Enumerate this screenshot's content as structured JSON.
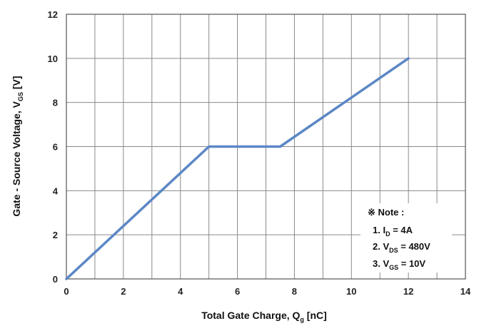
{
  "chart_data": {
    "type": "line",
    "xlabel": {
      "main": "Total Gate Charge, Q",
      "sub": "g",
      "unit": " [nC]"
    },
    "ylabel": {
      "main": "Gate - Source Voltage, V",
      "sub": "GS",
      "unit": " [V]"
    },
    "xlim": [
      0,
      14
    ],
    "ylim": [
      0,
      12
    ],
    "x_ticks": [
      0,
      2,
      4,
      6,
      8,
      10,
      12,
      14
    ],
    "y_ticks": [
      0,
      2,
      4,
      6,
      8,
      10,
      12
    ],
    "x_grid_step": 1,
    "y_grid_step": 2,
    "grid": true,
    "series": [
      {
        "x": [
          0,
          5,
          7.5,
          12
        ],
        "y": [
          0,
          6,
          6,
          10
        ]
      }
    ],
    "line_color": "#5b87c5",
    "legend": null,
    "note": {
      "title": "※ Note :",
      "lines": [
        {
          "prefix": "1. I",
          "sub": "D",
          "suffix": " = 4A"
        },
        {
          "prefix": "2. V",
          "sub": "DS",
          "suffix": " = 480V"
        },
        {
          "prefix": "3. V",
          "sub": "GS",
          "suffix": " = 10V"
        }
      ]
    }
  }
}
